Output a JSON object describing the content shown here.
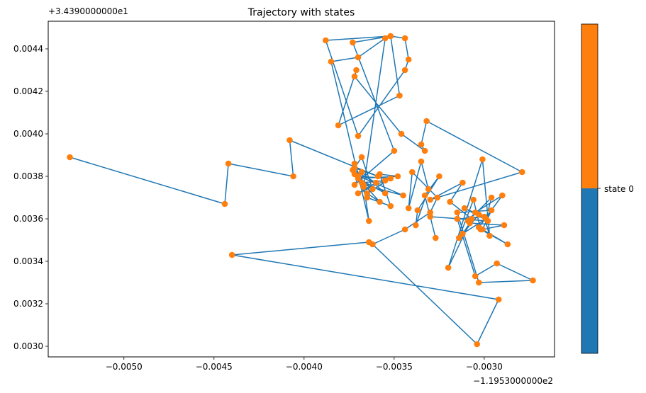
{
  "chart_data": {
    "type": "scatter",
    "title": "Trajectory with states",
    "xlabel": "",
    "ylabel": "",
    "x_offset_text": "−1.1953000000e2",
    "y_offset_text": "+3.4390000000e1",
    "xlim": [
      -0.00542,
      -0.00261
    ],
    "ylim": [
      0.00295,
      0.00453
    ],
    "xticks": [
      -0.005,
      -0.0045,
      -0.004,
      -0.0035,
      -0.003
    ],
    "xtick_labels": [
      "−0.0050",
      "−0.0045",
      "−0.0040",
      "−0.0035",
      "−0.0030"
    ],
    "yticks": [
      0.003,
      0.0032,
      0.0034,
      0.0036,
      0.0038,
      0.004,
      0.0042,
      0.0044
    ],
    "ytick_labels": [
      "0.0030",
      "0.0032",
      "0.0034",
      "0.0036",
      "0.0038",
      "0.0040",
      "0.0042",
      "0.0044"
    ],
    "grid": false,
    "line_color": "#1f77b4",
    "marker_color": "#ff7f0e",
    "colorbar": {
      "colors": [
        "#1f77b4",
        "#ff7f0e"
      ],
      "tick_label": "state 0"
    },
    "path": [
      [
        -0.0053,
        0.00389
      ],
      [
        -0.00444,
        0.00367
      ],
      [
        -0.00442,
        0.00386
      ],
      [
        -0.00406,
        0.0038
      ],
      [
        -0.00408,
        0.00397
      ],
      [
        -0.00359,
        0.0038
      ],
      [
        -0.00372,
        0.00384
      ],
      [
        -0.00368,
        0.00389
      ],
      [
        -0.00362,
        0.00374
      ],
      [
        -0.0037,
        0.0038
      ],
      [
        -0.00352,
        0.00379
      ],
      [
        -0.00365,
        0.00372
      ],
      [
        -0.00358,
        0.00368
      ],
      [
        -0.00372,
        0.00381
      ],
      [
        -0.00345,
        0.00371
      ],
      [
        -0.00367,
        0.00376
      ],
      [
        -0.00364,
        0.00359
      ],
      [
        -0.00385,
        0.00434
      ],
      [
        -0.0037,
        0.00436
      ],
      [
        -0.00355,
        0.00445
      ],
      [
        -0.00367,
        0.00375
      ],
      [
        -0.00372,
        0.00386
      ],
      [
        -0.00368,
        0.00377
      ],
      [
        -0.00355,
        0.00378
      ],
      [
        -0.0037,
        0.00372
      ],
      [
        -0.0036,
        0.00377
      ],
      [
        -0.00373,
        0.00383
      ],
      [
        -0.00365,
        0.0037
      ],
      [
        -0.00352,
        0.00366
      ],
      [
        -0.00358,
        0.00381
      ],
      [
        -0.00348,
        0.0038
      ],
      [
        -0.0037,
        0.00379
      ],
      [
        -0.00355,
        0.00372
      ],
      [
        -0.00368,
        0.00382
      ],
      [
        -0.00372,
        0.00376
      ],
      [
        -0.0035,
        0.00392
      ],
      [
        -0.00373,
        0.00443
      ],
      [
        -0.00352,
        0.00446
      ],
      [
        -0.00344,
        0.00445
      ],
      [
        -0.00342,
        0.00435
      ],
      [
        -0.00344,
        0.0043
      ],
      [
        -0.0037,
        0.00399
      ],
      [
        -0.00388,
        0.00444
      ],
      [
        -0.00352,
        0.00446
      ],
      [
        -0.00347,
        0.00418
      ],
      [
        -0.00381,
        0.00404
      ],
      [
        -0.00371,
        0.0043
      ],
      [
        -0.00372,
        0.00427
      ],
      [
        -0.00346,
        0.004
      ],
      [
        -0.00333,
        0.00392
      ],
      [
        -0.00335,
        0.00395
      ],
      [
        -0.00332,
        0.00406
      ],
      [
        -0.00279,
        0.00382
      ],
      [
        -0.0033,
        0.00369
      ],
      [
        -0.00312,
        0.00377
      ],
      [
        -0.00319,
        0.00368
      ],
      [
        -0.00307,
        0.0036
      ],
      [
        -0.0032,
        0.00337
      ],
      [
        -0.00301,
        0.00388
      ],
      [
        -0.00297,
        0.00352
      ],
      [
        -0.003,
        0.00361
      ],
      [
        -0.00315,
        0.0036
      ],
      [
        -0.00305,
        0.00333
      ],
      [
        -0.00293,
        0.00339
      ],
      [
        -0.00273,
        0.00331
      ],
      [
        -0.00303,
        0.0033
      ],
      [
        -0.00315,
        0.00363
      ],
      [
        -0.00296,
        0.00364
      ],
      [
        -0.00301,
        0.00355
      ],
      [
        -0.00289,
        0.00357
      ],
      [
        -0.00308,
        0.00358
      ],
      [
        -0.00312,
        0.00353
      ],
      [
        -0.00299,
        0.0036
      ],
      [
        -0.00296,
        0.0037
      ],
      [
        -0.00309,
        0.00359
      ],
      [
        -0.00305,
        0.00363
      ],
      [
        -0.0029,
        0.00371
      ],
      [
        -0.00303,
        0.00356
      ],
      [
        -0.00287,
        0.00348
      ],
      [
        -0.00302,
        0.00355
      ],
      [
        -0.00306,
        0.00369
      ],
      [
        -0.00314,
        0.00351
      ],
      [
        -0.00303,
        0.00362
      ],
      [
        -0.00311,
        0.00365
      ],
      [
        -0.00298,
        0.00359
      ],
      [
        -0.0033,
        0.00361
      ],
      [
        -0.00327,
        0.00351
      ],
      [
        -0.00333,
        0.00371
      ],
      [
        -0.00325,
        0.0038
      ],
      [
        -0.00337,
        0.00364
      ],
      [
        -0.00338,
        0.00357
      ],
      [
        -0.00331,
        0.00374
      ],
      [
        -0.00335,
        0.00387
      ],
      [
        -0.00342,
        0.00365
      ],
      [
        -0.0034,
        0.00382
      ],
      [
        -0.00326,
        0.0037
      ],
      [
        -0.0033,
        0.00363
      ],
      [
        -0.00344,
        0.00355
      ],
      [
        -0.00362,
        0.00348
      ],
      [
        -0.00304,
        0.00301
      ],
      [
        -0.00292,
        0.00322
      ],
      [
        -0.0044,
        0.00343
      ],
      [
        -0.00364,
        0.00349
      ]
    ]
  }
}
